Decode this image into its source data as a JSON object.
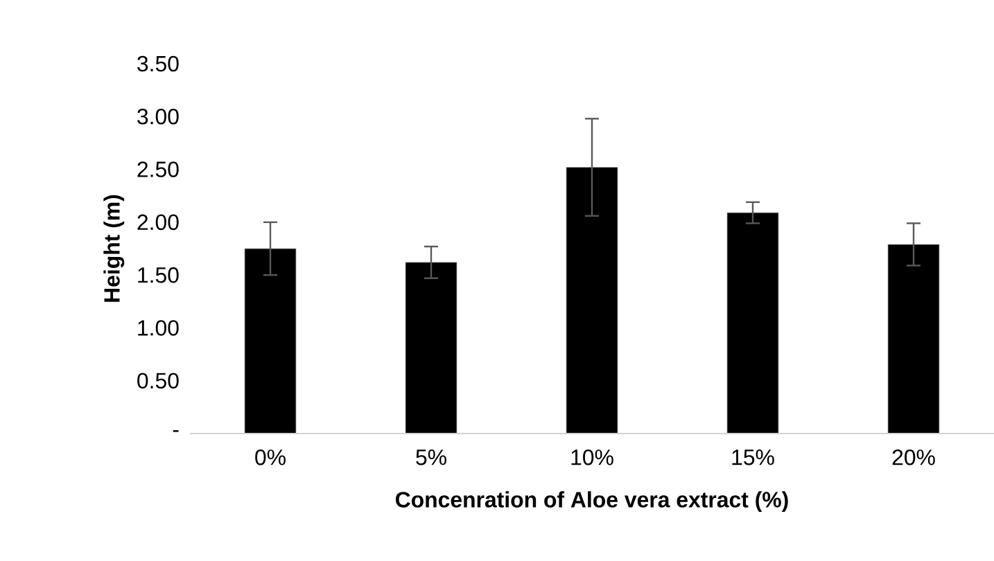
{
  "chart_data": {
    "type": "bar",
    "xlabel": "Concenration of Aloe vera extract (%)",
    "ylabel": "Height (m)",
    "categories": [
      "0%",
      "5%",
      "10%",
      "15%",
      "20%"
    ],
    "values": [
      1.75,
      1.62,
      2.52,
      2.09,
      1.79
    ],
    "errors": [
      0.25,
      0.15,
      0.46,
      0.1,
      0.2
    ],
    "color": "#000000",
    "ylim": [
      0,
      3.5
    ],
    "yticks": [
      {
        "value": 0,
        "label": "-"
      },
      {
        "value": 0.5,
        "label": "0.50"
      },
      {
        "value": 1,
        "label": "1.00"
      },
      {
        "value": 1.5,
        "label": "1.50"
      },
      {
        "value": 2,
        "label": "2.00"
      },
      {
        "value": 2.5,
        "label": "2.50"
      },
      {
        "value": 3,
        "label": "3.00"
      },
      {
        "value": 3.5,
        "label": "3.50"
      }
    ]
  }
}
